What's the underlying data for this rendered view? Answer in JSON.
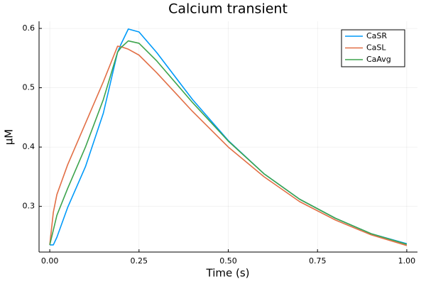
{
  "chart_data": {
    "type": "line",
    "title": "Calcium transient",
    "x_label": "Time (s)",
    "y_label": "μM",
    "x": [
      0,
      0.01,
      0.02,
      0.05,
      0.1,
      0.15,
      0.19,
      0.2,
      0.22,
      0.25,
      0.3,
      0.4,
      0.5,
      0.6,
      0.7,
      0.8,
      0.9,
      1.0
    ],
    "series": [
      {
        "name": "CaSR",
        "color": "#009af9",
        "values": [
          0.235,
          0.235,
          0.248,
          0.298,
          0.367,
          0.457,
          0.56,
          0.574,
          0.599,
          0.594,
          0.559,
          0.48,
          0.411,
          0.355,
          0.312,
          0.28,
          0.254,
          0.237
        ]
      },
      {
        "name": "CaSL",
        "color": "#e26f46",
        "values": [
          0.235,
          0.29,
          0.32,
          0.37,
          0.44,
          0.51,
          0.57,
          0.569,
          0.565,
          0.555,
          0.525,
          0.46,
          0.4,
          0.35,
          0.308,
          0.277,
          0.252,
          0.234
        ]
      },
      {
        "name": "CaAvg",
        "color": "#3da44d",
        "values": [
          0.235,
          0.26,
          0.285,
          0.33,
          0.4,
          0.48,
          0.56,
          0.568,
          0.579,
          0.575,
          0.545,
          0.475,
          0.41,
          0.355,
          0.312,
          0.28,
          0.254,
          0.236
        ]
      }
    ],
    "xlim": [
      -0.03,
      1.03
    ],
    "ylim": [
      0.223,
      0.612
    ],
    "xticks": [
      {
        "value": 0,
        "label": "0.00"
      },
      {
        "value": 0.25,
        "label": "0.25"
      },
      {
        "value": 0.5,
        "label": "0.50"
      },
      {
        "value": 0.75,
        "label": "0.75"
      },
      {
        "value": 1,
        "label": "1.00"
      }
    ],
    "yticks": [
      0.3,
      0.4,
      0.5,
      0.6
    ],
    "grid": true,
    "legend_position": "top-right"
  }
}
